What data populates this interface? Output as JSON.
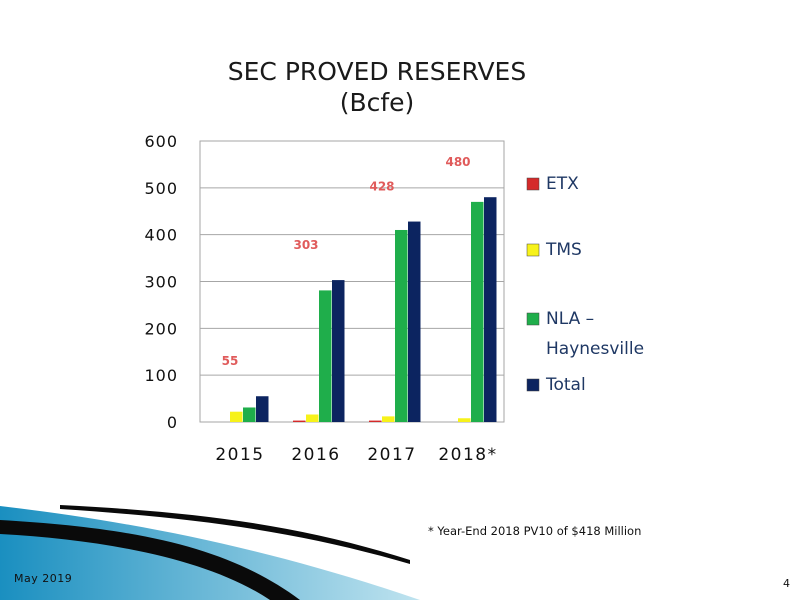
{
  "chart_data": {
    "type": "bar",
    "title": "SEC PROVED RESERVES",
    "subtitle": "(Bcfe)",
    "categories": [
      "2015",
      "2016",
      "2017",
      "2018*"
    ],
    "series": [
      {
        "name": "ETX",
        "color": "#d42a2a",
        "values": [
          0,
          3,
          3,
          0
        ]
      },
      {
        "name": "TMS",
        "color": "#f7f21a",
        "values": [
          22,
          16,
          12,
          8
        ]
      },
      {
        "name": "NLA - Haynesville",
        "color": "#1fae4b",
        "values": [
          31,
          281,
          410,
          470
        ]
      },
      {
        "name": "Total",
        "color": "#0c2460",
        "values": [
          55,
          303,
          428,
          480
        ]
      }
    ],
    "total_labels": [
      "55",
      "303",
      "428",
      "480"
    ],
    "y_ticks": [
      "0",
      "100",
      "200",
      "300",
      "400",
      "500",
      "600"
    ],
    "ylim": [
      0,
      600
    ],
    "total_label_color": "#e05b5b",
    "grid": true,
    "legend_position": "right",
    "xlabel": "",
    "ylabel": ""
  },
  "footnote": "* Year-End 2018 PV10 of $418 Million",
  "footer": {
    "date": "May 2019",
    "page_number": "4"
  }
}
